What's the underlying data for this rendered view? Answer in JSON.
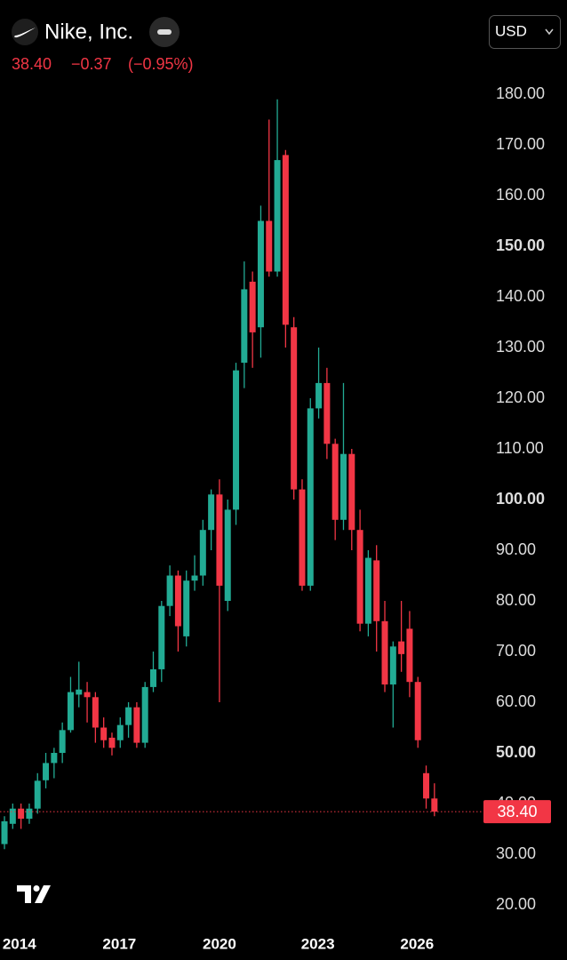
{
  "quote": {
    "name": "Nike, Inc.",
    "price": "38.40",
    "change": "−0.37",
    "change_pct": "(−0.95%)",
    "currency": "USD"
  },
  "chart_data": {
    "type": "candlestick",
    "up_color": "#22ab94",
    "down_color": "#f23645",
    "open": [
      32,
      36,
      39,
      37,
      39,
      44.6,
      48,
      50,
      54.5,
      61.5,
      62,
      61,
      55,
      53,
      52.5,
      55.5,
      59,
      52,
      63,
      66.5,
      79,
      85,
      73,
      84,
      85,
      94,
      101,
      80,
      98,
      127,
      143,
      134,
      155,
      145,
      168,
      134,
      102,
      83,
      118,
      123,
      111,
      96,
      109,
      94,
      75.5,
      88,
      76,
      63.5,
      72,
      74.5,
      64,
      46,
      41
    ],
    "high": [
      37.5,
      40,
      40,
      40,
      46,
      50,
      51,
      56,
      65,
      68,
      64,
      62,
      57,
      54,
      57,
      60,
      60,
      64,
      70,
      80,
      87,
      86,
      86,
      89,
      96,
      102,
      104,
      100,
      127,
      147,
      145,
      158,
      175,
      179,
      169,
      136,
      104,
      120,
      130,
      126,
      112,
      123,
      110,
      98,
      90,
      91,
      80,
      72,
      80,
      78,
      65,
      47.5,
      44
    ],
    "low": [
      31,
      35,
      35,
      36,
      38,
      43,
      45,
      48,
      54,
      59,
      56,
      52,
      51,
      49.5,
      51,
      53,
      51,
      51,
      62,
      64,
      77,
      70,
      71,
      82,
      83,
      90,
      60,
      78,
      95,
      122,
      126,
      128,
      144,
      144,
      130,
      100,
      82,
      82,
      116,
      108,
      92,
      94,
      90,
      74,
      73,
      70,
      62,
      55,
      66,
      61,
      51,
      39,
      37.5
    ],
    "close": [
      36.5,
      39,
      37,
      39,
      44.5,
      48,
      50,
      54.5,
      62,
      62.5,
      61,
      55,
      52.5,
      51,
      55.5,
      59,
      52,
      63,
      66.5,
      79,
      85,
      75,
      84,
      85,
      94,
      101,
      83,
      98,
      125.5,
      141.5,
      133,
      155,
      145,
      167,
      134.5,
      102,
      83,
      118,
      123,
      111,
      96,
      109,
      94,
      75.5,
      88.5,
      76,
      63.5,
      71,
      69.5,
      64,
      52.5,
      41,
      38.4
    ],
    "xlim": [
      -0.54,
      57.5
    ],
    "xticks": [
      {
        "value": 1.8,
        "label": "2014"
      },
      {
        "value": 13.9,
        "label": "2017"
      },
      {
        "value": 26,
        "label": "2020"
      },
      {
        "value": 37.9,
        "label": "2023"
      },
      {
        "value": 49.9,
        "label": "2026"
      }
    ],
    "ylim": [
      20,
      180
    ],
    "yticks": [
      {
        "value": 20,
        "label": "20.00"
      },
      {
        "value": 30,
        "label": "30.00"
      },
      {
        "value": 40,
        "label": "40.00"
      },
      {
        "value": 50,
        "label": "50.00",
        "bold": true
      },
      {
        "value": 60,
        "label": "60.00"
      },
      {
        "value": 70,
        "label": "70.00"
      },
      {
        "value": 80,
        "label": "80.00"
      },
      {
        "value": 90,
        "label": "90.00"
      },
      {
        "value": 100,
        "label": "100.00",
        "bold": true
      },
      {
        "value": 110,
        "label": "110.00"
      },
      {
        "value": 120,
        "label": "120.00"
      },
      {
        "value": 130,
        "label": "130.00"
      },
      {
        "value": 140,
        "label": "140.00"
      },
      {
        "value": 150,
        "label": "150.00",
        "bold": true
      },
      {
        "value": 160,
        "label": "160.00"
      },
      {
        "value": 170,
        "label": "170.00"
      },
      {
        "value": 180,
        "label": "180.00"
      }
    ],
    "last_price": {
      "value": 38.4,
      "label": "38.40"
    }
  }
}
